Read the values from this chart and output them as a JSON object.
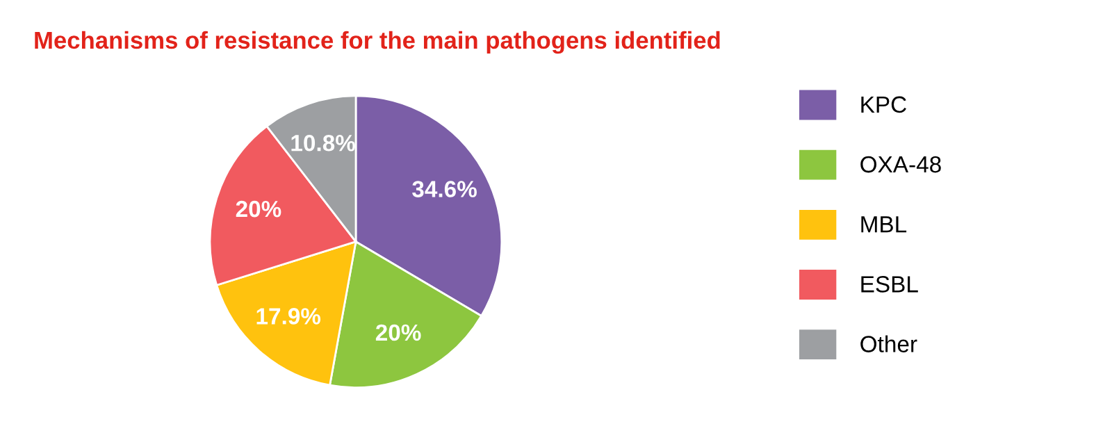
{
  "chart_data": {
    "type": "pie",
    "title": "Mechanisms of resistance for the main pathogens identified",
    "categories": [
      "KPC",
      "OXA-48",
      "MBL",
      "ESBL",
      "Other"
    ],
    "values": [
      34.6,
      20,
      17.9,
      20,
      10.8
    ],
    "value_labels": [
      "34.6%",
      "20%",
      "17.9%",
      "20%",
      "10.8%"
    ],
    "colors": [
      "#7b5ea7",
      "#8dc63f",
      "#ffc20e",
      "#f15a5f",
      "#9d9fa2"
    ],
    "legend": "right"
  }
}
